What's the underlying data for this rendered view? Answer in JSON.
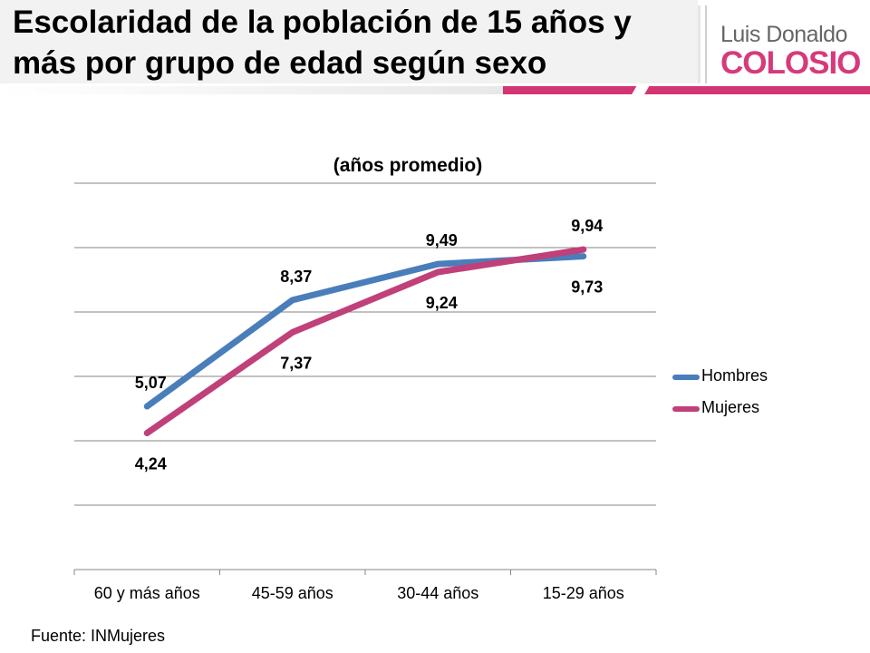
{
  "header": {
    "title": "Escolaridad de la población de 15 años y más por grupo de edad según sexo",
    "brand_top": "Luis Donaldo",
    "brand_bottom": "COLOSIO"
  },
  "source": "Fuente: INMujeres",
  "chart_data": {
    "type": "line",
    "title": "(años promedio)",
    "xlabel": "",
    "ylabel": "",
    "categories": [
      "60 y más años",
      "45-59 años",
      "30-44 años",
      "15-29 años"
    ],
    "series": [
      {
        "name": "Hombres",
        "color": "#4a7ebb",
        "values": [
          5.07,
          8.37,
          9.49,
          9.73
        ],
        "labels": [
          "5,07",
          "8,37",
          "9,49",
          "9,73"
        ],
        "label_position": [
          "above",
          "above",
          "above",
          "below"
        ]
      },
      {
        "name": "Mujeres",
        "color": "#c0407a",
        "values": [
          4.24,
          7.37,
          9.24,
          9.94
        ],
        "labels": [
          "4,24",
          "7,37",
          "9,24",
          "9,94"
        ],
        "label_position": [
          "below",
          "below",
          "below",
          "above"
        ]
      }
    ],
    "ylim": [
      0,
      12
    ],
    "yticks_shown": false,
    "grid": true,
    "legend_position": "right"
  }
}
